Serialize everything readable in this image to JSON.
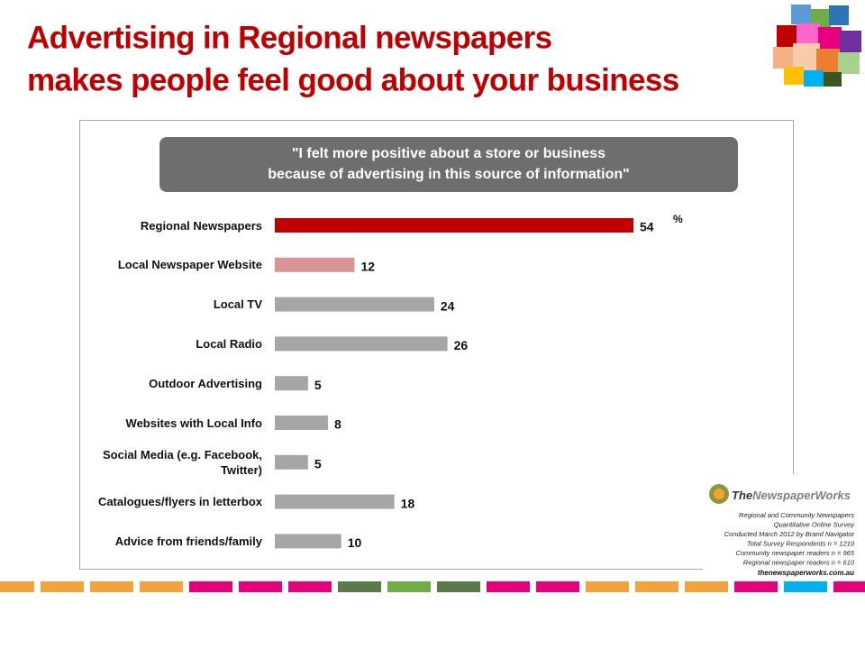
{
  "header": {
    "title": [
      "Advertising in Regional newspapers",
      "makes people feel good about your business"
    ]
  },
  "chart_data": {
    "type": "hbar",
    "title": [
      "\"I felt more positive about a store or business",
      "because of advertising in this source of information\""
    ],
    "unit": "%",
    "categories": [
      "Regional Newspapers",
      "Local Newspaper Website",
      "Local TV",
      "Local Radio",
      "Outdoor Advertising",
      "Websites with Local Info",
      "Social Media (e.g. Facebook, Twitter)",
      "Catalogues/flyers in letterbox",
      "Advice from friends/family"
    ],
    "values": [
      54,
      12,
      24,
      26,
      5,
      8,
      5,
      18,
      10
    ],
    "colors": [
      "#c00000",
      "#d99594",
      "#a6a6a6",
      "#a6a6a6",
      "#a6a6a6",
      "#a6a6a6",
      "#a6a6a6",
      "#a6a6a6",
      "#a6a6a6"
    ]
  },
  "source": {
    "brand_prefix": "The",
    "brand": "NewspaperWorks",
    "lines": [
      "Regional and Community Newspapers",
      "Quantitative Online Survey",
      "Conducted March 2012 by Brand Navigator",
      "Total Survey Respondents n = 1210",
      "Community newspaper readers n = 965",
      "Regional newspaper readers n = 610"
    ],
    "url": "thenewspaperworks.com.au"
  }
}
